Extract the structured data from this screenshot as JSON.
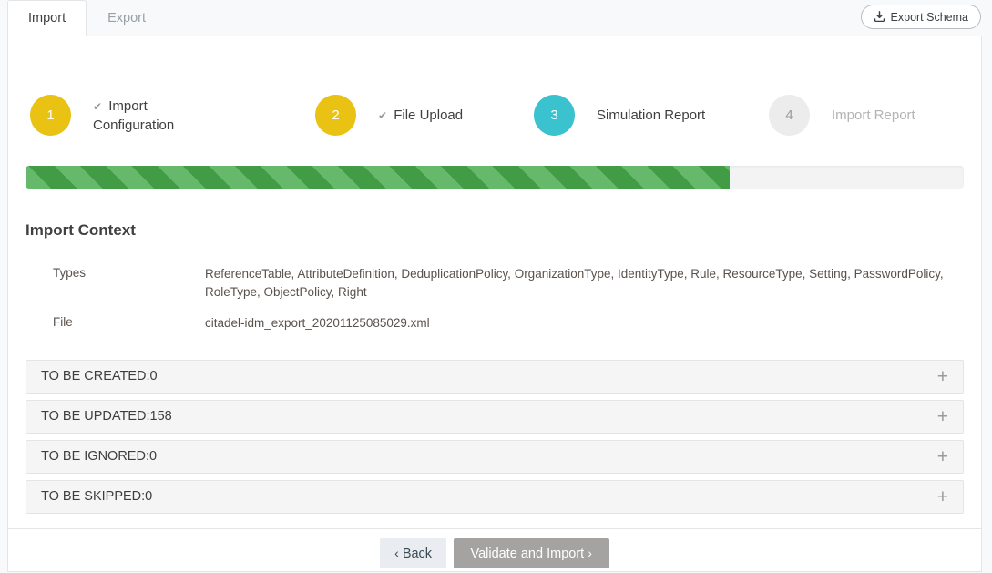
{
  "tabs": {
    "import": "Import",
    "export": "Export"
  },
  "header": {
    "export_schema_label": "Export Schema",
    "export_schema_icon": "download-icon"
  },
  "stepper": {
    "steps": [
      {
        "number": "1",
        "label": "Import Configuration",
        "state": "done"
      },
      {
        "number": "2",
        "label": "File Upload",
        "state": "done"
      },
      {
        "number": "3",
        "label": "Simulation Report",
        "state": "active"
      },
      {
        "number": "4",
        "label": "Import Report",
        "state": "upcoming"
      }
    ]
  },
  "progress": {
    "percent": 75
  },
  "import_context": {
    "title": "Import Context",
    "types_label": "Types",
    "types_value": "ReferenceTable, AttributeDefinition, DeduplicationPolicy, OrganizationType, IdentityType, Rule, ResourceType, Setting, PasswordPolicy, RoleType, ObjectPolicy, Right",
    "file_label": "File",
    "file_value": "citadel-idm_export_20201125085029.xml"
  },
  "panels": [
    {
      "label": "TO BE CREATED",
      "count": "0"
    },
    {
      "label": "TO BE UPDATED",
      "count": "158"
    },
    {
      "label": "TO BE IGNORED",
      "count": "0"
    },
    {
      "label": "TO BE SKIPPED",
      "count": "0"
    }
  ],
  "footer": {
    "back_label": "Back",
    "validate_label": "Validate and Import"
  },
  "glyphs": {
    "check": "✔",
    "plus": "+",
    "back_chevron": "‹",
    "forward_chevron": "›",
    "colon_sep": " : "
  },
  "colors": {
    "step_done": "#e9c213",
    "step_active": "#3bc2cf",
    "step_upcoming": "#ececec",
    "progress_light_green": "#66b96a",
    "progress_dark_green": "#429c46"
  }
}
